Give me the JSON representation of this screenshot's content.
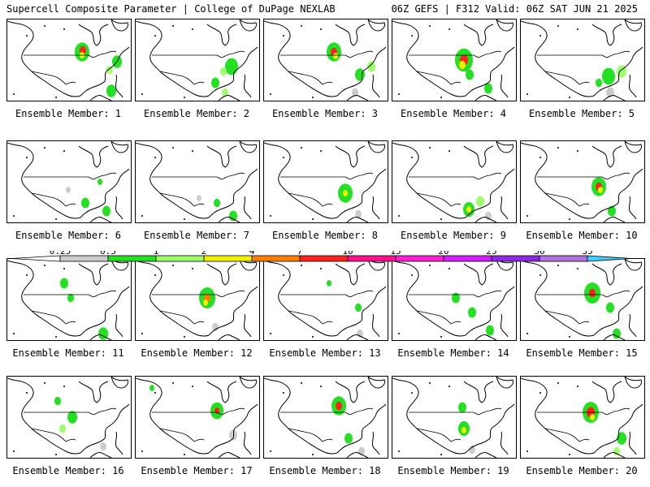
{
  "header": {
    "left": "Supercell Composite Parameter | College of DuPage NEXLAB",
    "right": "06Z GEFS | F312 Valid: 06Z SAT JUN 21 2025"
  },
  "caption_prefix": "Ensemble Member: ",
  "selected_member": 20,
  "members": [
    {
      "label": "Ensemble Member: 1",
      "blobs": [
        {
          "x": 92,
          "y": 40,
          "r": 9,
          "c": "#23e023"
        },
        {
          "x": 93,
          "y": 38,
          "r": 4,
          "c": "#ff2020"
        },
        {
          "x": 92,
          "y": 44,
          "r": 3,
          "c": "#f0f000"
        },
        {
          "x": 135,
          "y": 52,
          "r": 6,
          "c": "#23e023"
        },
        {
          "x": 126,
          "y": 62,
          "r": 4,
          "c": "#9fff6a"
        },
        {
          "x": 128,
          "y": 88,
          "r": 6,
          "c": "#23e023"
        }
      ]
    },
    {
      "label": "Ensemble Member: 2",
      "blobs": [
        {
          "x": 118,
          "y": 58,
          "r": 8,
          "c": "#23e023"
        },
        {
          "x": 108,
          "y": 64,
          "r": 4,
          "c": "#9fff6a"
        },
        {
          "x": 98,
          "y": 78,
          "r": 5,
          "c": "#23e023"
        },
        {
          "x": 110,
          "y": 90,
          "r": 4,
          "c": "#9fff6a"
        }
      ]
    },
    {
      "label": "Ensemble Member: 3",
      "blobs": [
        {
          "x": 86,
          "y": 40,
          "r": 9,
          "c": "#23e023"
        },
        {
          "x": 86,
          "y": 40,
          "r": 4,
          "c": "#ff2020"
        },
        {
          "x": 88,
          "y": 45,
          "r": 3,
          "c": "#f0f000"
        },
        {
          "x": 118,
          "y": 68,
          "r": 6,
          "c": "#23e023"
        },
        {
          "x": 132,
          "y": 58,
          "r": 5,
          "c": "#9fff6a"
        },
        {
          "x": 112,
          "y": 90,
          "r": 4,
          "c": "#cccccc"
        }
      ]
    },
    {
      "label": "Ensemble Member: 4",
      "blobs": [
        {
          "x": 88,
          "y": 50,
          "r": 11,
          "c": "#23e023"
        },
        {
          "x": 88,
          "y": 50,
          "r": 5,
          "c": "#ff2020"
        },
        {
          "x": 86,
          "y": 56,
          "r": 4,
          "c": "#f0f000"
        },
        {
          "x": 95,
          "y": 68,
          "r": 5,
          "c": "#23e023"
        },
        {
          "x": 118,
          "y": 85,
          "r": 5,
          "c": "#23e023"
        }
      ]
    },
    {
      "label": "Ensemble Member: 5",
      "blobs": [
        {
          "x": 108,
          "y": 70,
          "r": 8,
          "c": "#23e023"
        },
        {
          "x": 124,
          "y": 64,
          "r": 6,
          "c": "#9fff6a"
        },
        {
          "x": 96,
          "y": 78,
          "r": 4,
          "c": "#23e023"
        },
        {
          "x": 110,
          "y": 90,
          "r": 5,
          "c": "#cccccc"
        }
      ]
    },
    {
      "label": "Ensemble Member: 6",
      "blobs": [
        {
          "x": 114,
          "y": 50,
          "r": 3,
          "c": "#23e023"
        },
        {
          "x": 96,
          "y": 76,
          "r": 5,
          "c": "#23e023"
        },
        {
          "x": 122,
          "y": 86,
          "r": 5,
          "c": "#23e023"
        },
        {
          "x": 75,
          "y": 60,
          "r": 3,
          "c": "#cccccc"
        }
      ]
    },
    {
      "label": "Ensemble Member: 7",
      "blobs": [
        {
          "x": 100,
          "y": 76,
          "r": 4,
          "c": "#23e023"
        },
        {
          "x": 120,
          "y": 92,
          "r": 5,
          "c": "#23e023"
        },
        {
          "x": 78,
          "y": 70,
          "r": 3,
          "c": "#cccccc"
        }
      ]
    },
    {
      "label": "Ensemble Member: 8",
      "blobs": [
        {
          "x": 100,
          "y": 64,
          "r": 9,
          "c": "#23e023"
        },
        {
          "x": 100,
          "y": 64,
          "r": 3,
          "c": "#f0f000"
        },
        {
          "x": 116,
          "y": 90,
          "r": 4,
          "c": "#cccccc"
        }
      ]
    },
    {
      "label": "Ensemble Member: 9",
      "blobs": [
        {
          "x": 94,
          "y": 84,
          "r": 7,
          "c": "#23e023"
        },
        {
          "x": 94,
          "y": 84,
          "r": 3,
          "c": "#f0f000"
        },
        {
          "x": 108,
          "y": 74,
          "r": 5,
          "c": "#9fff6a"
        },
        {
          "x": 118,
          "y": 92,
          "r": 4,
          "c": "#cccccc"
        }
      ]
    },
    {
      "label": "Ensemble Member: 10",
      "blobs": [
        {
          "x": 96,
          "y": 56,
          "r": 9,
          "c": "#23e023"
        },
        {
          "x": 96,
          "y": 56,
          "r": 4,
          "c": "#ff2020"
        },
        {
          "x": 98,
          "y": 60,
          "r": 3,
          "c": "#f0f000"
        },
        {
          "x": 112,
          "y": 86,
          "r": 5,
          "c": "#23e023"
        }
      ]
    },
    {
      "label": "Ensemble Member: 11",
      "blobs": [
        {
          "x": 70,
          "y": 30,
          "r": 5,
          "c": "#23e023"
        },
        {
          "x": 78,
          "y": 48,
          "r": 4,
          "c": "#23e023"
        },
        {
          "x": 118,
          "y": 92,
          "r": 6,
          "c": "#23e023"
        }
      ]
    },
    {
      "label": "Ensemble Member: 12",
      "blobs": [
        {
          "x": 88,
          "y": 48,
          "r": 10,
          "c": "#23e023"
        },
        {
          "x": 88,
          "y": 48,
          "r": 4,
          "c": "#ff8000"
        },
        {
          "x": 86,
          "y": 54,
          "r": 3,
          "c": "#f0f000"
        },
        {
          "x": 98,
          "y": 84,
          "r": 4,
          "c": "#cccccc"
        }
      ]
    },
    {
      "label": "Ensemble Member: 13",
      "blobs": [
        {
          "x": 116,
          "y": 60,
          "r": 4,
          "c": "#23e023"
        },
        {
          "x": 80,
          "y": 30,
          "r": 3,
          "c": "#23e023"
        },
        {
          "x": 118,
          "y": 92,
          "r": 4,
          "c": "#cccccc"
        }
      ]
    },
    {
      "label": "Ensemble Member: 14",
      "blobs": [
        {
          "x": 78,
          "y": 48,
          "r": 5,
          "c": "#23e023"
        },
        {
          "x": 98,
          "y": 66,
          "r": 5,
          "c": "#23e023"
        },
        {
          "x": 120,
          "y": 88,
          "r": 5,
          "c": "#23e023"
        }
      ]
    },
    {
      "label": "Ensemble Member: 15",
      "blobs": [
        {
          "x": 88,
          "y": 42,
          "r": 10,
          "c": "#23e023"
        },
        {
          "x": 88,
          "y": 42,
          "r": 4,
          "c": "#ff2020"
        },
        {
          "x": 110,
          "y": 60,
          "r": 5,
          "c": "#23e023"
        },
        {
          "x": 118,
          "y": 92,
          "r": 5,
          "c": "#23e023"
        }
      ]
    },
    {
      "label": "Ensemble Member: 16",
      "blobs": [
        {
          "x": 62,
          "y": 30,
          "r": 4,
          "c": "#23e023"
        },
        {
          "x": 80,
          "y": 50,
          "r": 6,
          "c": "#23e023"
        },
        {
          "x": 68,
          "y": 64,
          "r": 4,
          "c": "#9fff6a"
        },
        {
          "x": 118,
          "y": 86,
          "r": 4,
          "c": "#cccccc"
        }
      ]
    },
    {
      "label": "Ensemble Member: 17",
      "blobs": [
        {
          "x": 100,
          "y": 42,
          "r": 8,
          "c": "#23e023"
        },
        {
          "x": 100,
          "y": 42,
          "r": 3,
          "c": "#ff2020"
        },
        {
          "x": 120,
          "y": 72,
          "r": 5,
          "c": "#cccccc"
        },
        {
          "x": 20,
          "y": 14,
          "r": 3,
          "c": "#23e023"
        }
      ]
    },
    {
      "label": "Ensemble Member: 18",
      "blobs": [
        {
          "x": 92,
          "y": 36,
          "r": 9,
          "c": "#23e023"
        },
        {
          "x": 92,
          "y": 36,
          "r": 4,
          "c": "#ff2020"
        },
        {
          "x": 104,
          "y": 76,
          "r": 5,
          "c": "#23e023"
        },
        {
          "x": 120,
          "y": 92,
          "r": 4,
          "c": "#cccccc"
        }
      ]
    },
    {
      "label": "Ensemble Member: 19",
      "blobs": [
        {
          "x": 86,
          "y": 38,
          "r": 5,
          "c": "#23e023"
        },
        {
          "x": 88,
          "y": 64,
          "r": 7,
          "c": "#23e023"
        },
        {
          "x": 88,
          "y": 66,
          "r": 3,
          "c": "#f0f000"
        },
        {
          "x": 98,
          "y": 90,
          "r": 4,
          "c": "#cccccc"
        }
      ]
    },
    {
      "label": "Ensemble Member: 20",
      "blobs": [
        {
          "x": 86,
          "y": 44,
          "r": 10,
          "c": "#23e023"
        },
        {
          "x": 86,
          "y": 44,
          "r": 5,
          "c": "#ff2020"
        },
        {
          "x": 88,
          "y": 50,
          "r": 3,
          "c": "#f0f000"
        },
        {
          "x": 124,
          "y": 76,
          "r": 6,
          "c": "#23e023"
        },
        {
          "x": 118,
          "y": 92,
          "r": 4,
          "c": "#9fff6a"
        }
      ]
    }
  ],
  "colorbar": {
    "labels": [
      "0.25",
      "0.5",
      "1",
      "2",
      "4",
      "7",
      "10",
      "15",
      "20",
      "25",
      "30",
      "35"
    ],
    "colors": [
      "#cccccc",
      "#23e023",
      "#9fff6a",
      "#f0f000",
      "#ff8000",
      "#ff2020",
      "#ff1090",
      "#ff20d0",
      "#d020ff",
      "#8a2be2",
      "#b070e0",
      "#40d0ff"
    ]
  }
}
